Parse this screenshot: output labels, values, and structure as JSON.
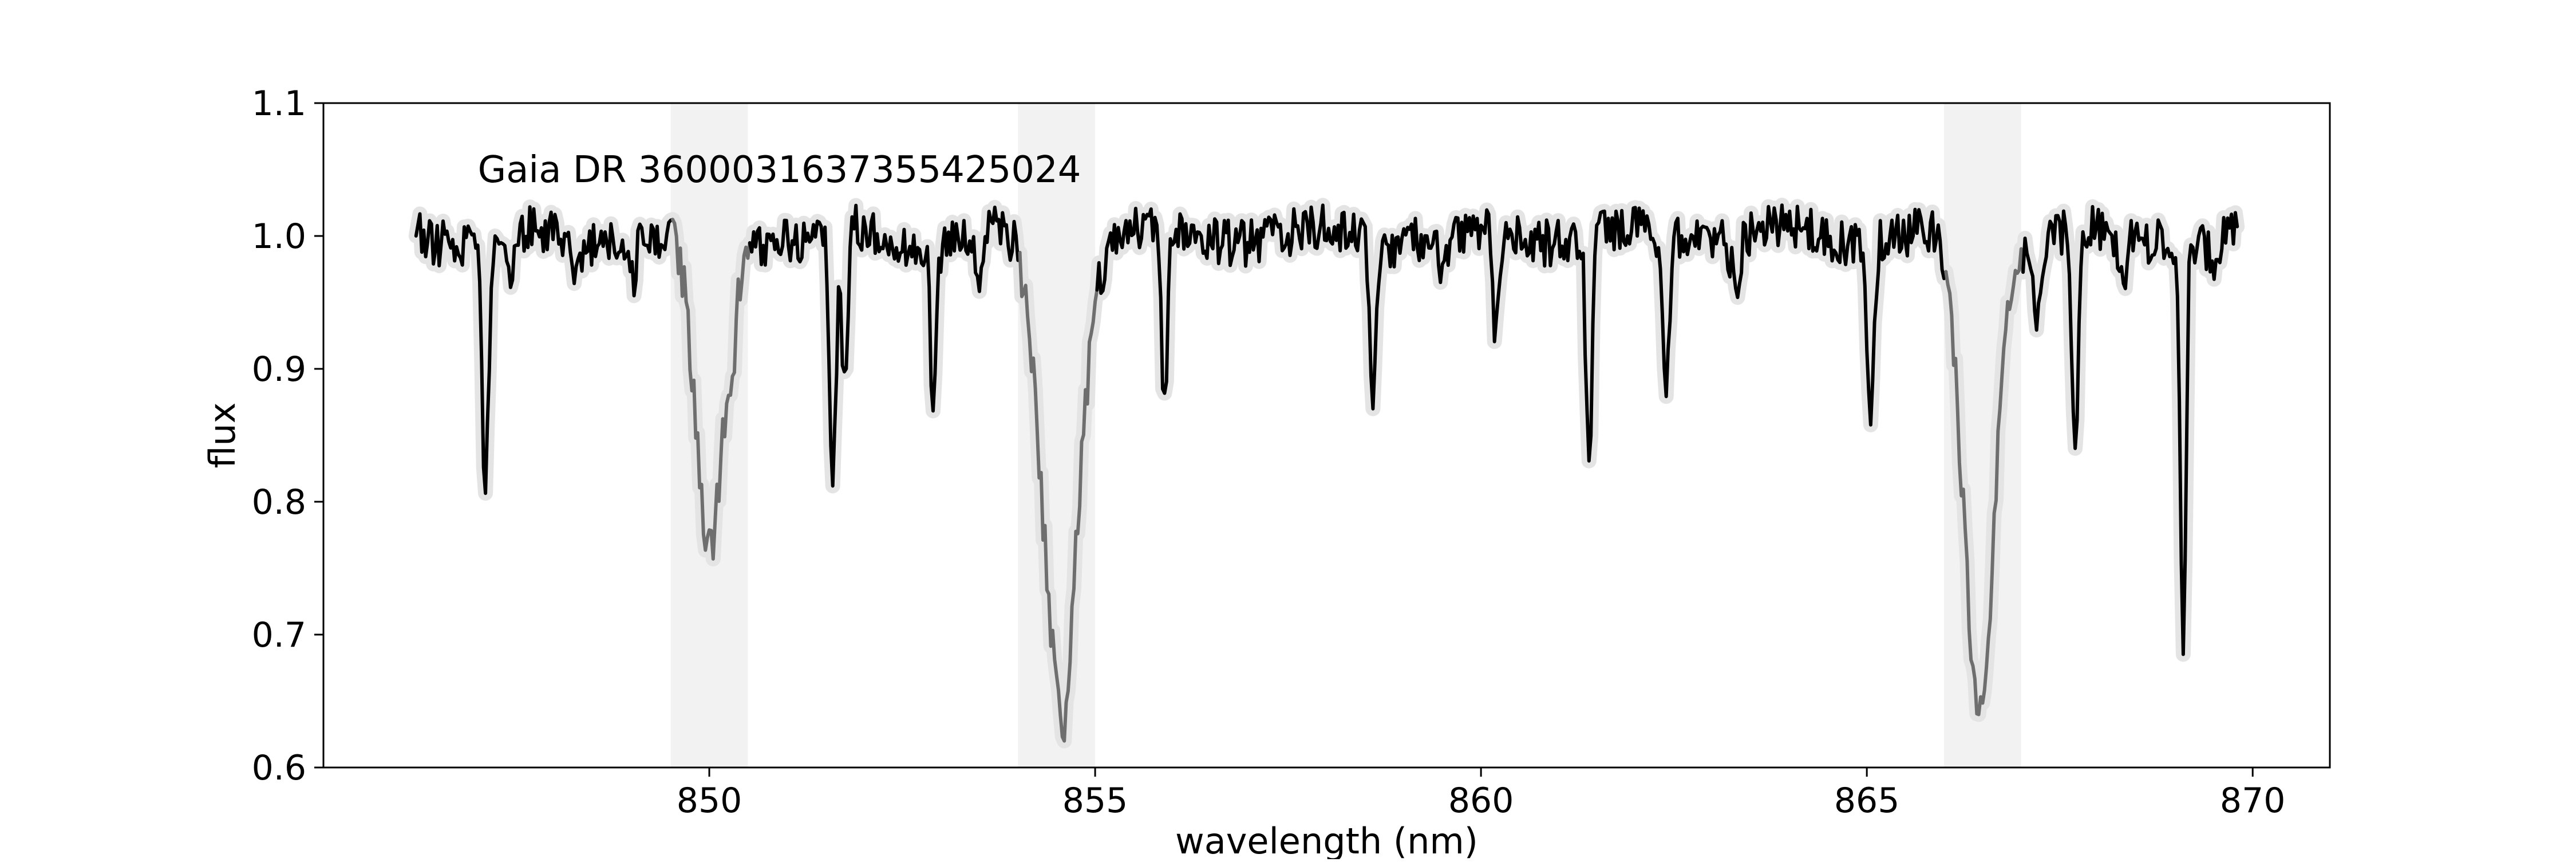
{
  "chart_data": {
    "type": "line",
    "title": "",
    "annotation": "Gaia DR 3600031637355425024",
    "xlabel": "wavelength (nm)",
    "ylabel": "flux",
    "xlim": [
      845,
      871
    ],
    "ylim": [
      0.6,
      1.1
    ],
    "xticks": [
      850,
      855,
      860,
      865,
      870
    ],
    "xtick_labels": [
      "850",
      "855",
      "860",
      "865",
      "870"
    ],
    "yticks": [
      0.6,
      0.7,
      0.8,
      0.9,
      1.0,
      1.1
    ],
    "ytick_labels": [
      "0.6",
      "0.7",
      "0.8",
      "0.9",
      "1.0",
      "1.1"
    ],
    "grid": false,
    "shaded_bands": [
      [
        849.5,
        850.5
      ],
      [
        854.0,
        855.0
      ],
      [
        866.0,
        867.0
      ]
    ],
    "colors": {
      "spectrum": "#000000",
      "line_core": "#6e6e6e",
      "uncertainty_band": "#e4e4e4",
      "shaded_region": "#f2f2f2"
    },
    "continuum_noise": 0.018,
    "absorption_lines": [
      {
        "center": 847.1,
        "depth": 0.19,
        "width": 0.04
      },
      {
        "center": 847.4,
        "depth": 0.04,
        "width": 0.05
      },
      {
        "center": 848.3,
        "depth": 0.03,
        "width": 0.05
      },
      {
        "center": 849.0,
        "depth": 0.03,
        "width": 0.05
      },
      {
        "center": 850.0,
        "depth": 0.24,
        "width": 0.18
      },
      {
        "center": 850.3,
        "depth": 0.04,
        "width": 0.06
      },
      {
        "center": 851.6,
        "depth": 0.19,
        "width": 0.04
      },
      {
        "center": 851.75,
        "depth": 0.12,
        "width": 0.04
      },
      {
        "center": 852.9,
        "depth": 0.11,
        "width": 0.04
      },
      {
        "center": 853.5,
        "depth": 0.04,
        "width": 0.06
      },
      {
        "center": 854.55,
        "depth": 0.34,
        "width": 0.23
      },
      {
        "center": 854.6,
        "depth": 0.04,
        "width": 0.05
      },
      {
        "center": 855.9,
        "depth": 0.13,
        "width": 0.04
      },
      {
        "center": 858.6,
        "depth": 0.11,
        "width": 0.04
      },
      {
        "center": 859.5,
        "depth": 0.03,
        "width": 0.05
      },
      {
        "center": 860.2,
        "depth": 0.08,
        "width": 0.04
      },
      {
        "center": 861.4,
        "depth": 0.17,
        "width": 0.04
      },
      {
        "center": 862.4,
        "depth": 0.12,
        "width": 0.04
      },
      {
        "center": 863.3,
        "depth": 0.03,
        "width": 0.05
      },
      {
        "center": 865.05,
        "depth": 0.14,
        "width": 0.04
      },
      {
        "center": 866.45,
        "depth": 0.35,
        "width": 0.2
      },
      {
        "center": 866.55,
        "depth": 0.03,
        "width": 0.05
      },
      {
        "center": 867.2,
        "depth": 0.05,
        "width": 0.05
      },
      {
        "center": 867.7,
        "depth": 0.17,
        "width": 0.04
      },
      {
        "center": 868.3,
        "depth": 0.04,
        "width": 0.05
      },
      {
        "center": 869.1,
        "depth": 0.31,
        "width": 0.035
      },
      {
        "center": 869.5,
        "depth": 0.04,
        "width": 0.05
      }
    ],
    "series": [
      {
        "x_start": 846.2,
        "x_end": 869.8,
        "step": 0.025
      }
    ]
  }
}
